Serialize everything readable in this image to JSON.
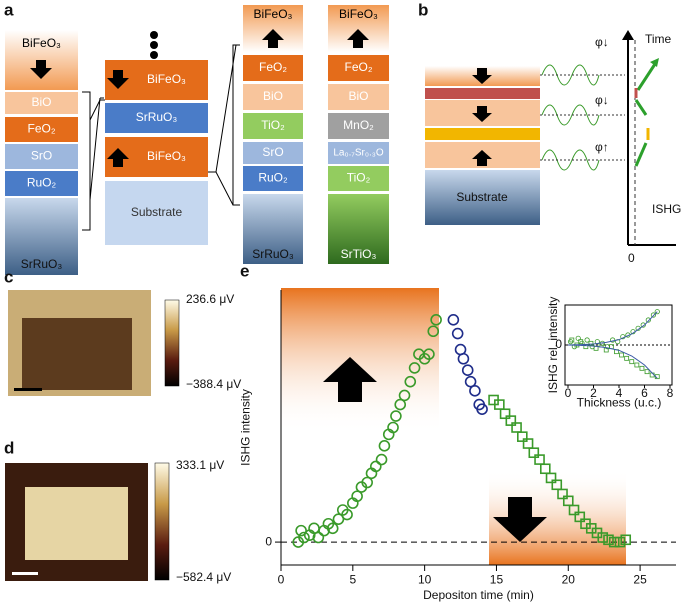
{
  "panels": {
    "a": {
      "label": "a",
      "stacks": [
        [
          "BiFeO₃",
          "BiO",
          "FeO₂",
          "SrO",
          "RuO₂",
          "SrRuO₃"
        ],
        [
          "BiFeO₃",
          "SrRuO₃",
          "BiFeO₃",
          "Substrate"
        ],
        [
          "BiFeO₃",
          "FeO₂",
          "BiO",
          "TiO₂",
          "SrO",
          "RuO₂",
          "SrRuO₃"
        ],
        [
          "BiFeO₃",
          "FeO₂",
          "BiO",
          "MnO₂",
          "La₀.₇Sr₀.₃O",
          "TiO₂",
          "SrTiO₃"
        ]
      ]
    },
    "b": {
      "label": "b",
      "substrate": "Substrate",
      "time": "Time",
      "ishg": "ISHG",
      "zero": "0",
      "phases": [
        "φ↓",
        "φ↓",
        "φ↑"
      ]
    },
    "c": {
      "label": "c",
      "max": "236.6 μV",
      "min": "−388.4 μV"
    },
    "d": {
      "label": "d",
      "max": "333.1 μV",
      "min": "−582.4 μV"
    },
    "e": {
      "label": "e"
    }
  },
  "chart_data": [
    {
      "type": "scatter",
      "xlabel": "Depositon time (min)",
      "ylabel": "ISHG intensity",
      "xlim": [
        0,
        27.5
      ],
      "ylim": [
        -0.1,
        1.1
      ],
      "xticks": [
        0,
        5,
        10,
        15,
        20,
        25
      ],
      "yticks": [
        0
      ],
      "series": [
        {
          "color": "#3a9a2a",
          "marker": "circle",
          "x": [
            1.2,
            1.4,
            1.6,
            2,
            2.3,
            2.6,
            3,
            3.3,
            3.6,
            4,
            4.3,
            4.6,
            5,
            5.3,
            5.6,
            6,
            6.3,
            6.6,
            7,
            7.2,
            7.5,
            7.8,
            8,
            8.3,
            8.6,
            9,
            9.3,
            9.6,
            10,
            10.3,
            10.6,
            10.8
          ],
          "values": [
            0.0,
            0.05,
            0.02,
            0.03,
            0.06,
            0.02,
            0.05,
            0.08,
            0.06,
            0.1,
            0.14,
            0.12,
            0.17,
            0.2,
            0.24,
            0.26,
            0.3,
            0.33,
            0.36,
            0.42,
            0.47,
            0.5,
            0.55,
            0.6,
            0.64,
            0.7,
            0.76,
            0.82,
            0.8,
            0.82,
            0.92,
            0.97
          ]
        },
        {
          "color": "#1f2d8a",
          "marker": "circle",
          "x": [
            12,
            12.3,
            12.5,
            12.7,
            13,
            13.2,
            13.5,
            13.8,
            14
          ],
          "values": [
            0.97,
            0.91,
            0.84,
            0.8,
            0.75,
            0.7,
            0.66,
            0.6,
            0.58
          ]
        },
        {
          "color": "#3a9a2a",
          "marker": "square",
          "x": [
            14.8,
            15.2,
            15.6,
            16,
            16.4,
            16.8,
            17.2,
            17.6,
            18,
            18.4,
            18.8,
            19.2,
            19.6,
            20,
            20.4,
            20.8,
            21.2,
            21.6,
            22,
            22.4,
            22.8,
            23.2,
            23.6,
            24
          ],
          "values": [
            0.62,
            0.6,
            0.56,
            0.53,
            0.5,
            0.46,
            0.43,
            0.39,
            0.36,
            0.32,
            0.28,
            0.25,
            0.21,
            0.18,
            0.14,
            0.11,
            0.08,
            0.06,
            0.04,
            0.02,
            0.01,
            0.0,
            0.0,
            0.01
          ]
        }
      ]
    },
    {
      "type": "scatter",
      "xlabel": "Thickness (u.c.)",
      "ylabel": "ISHG rel. intensity",
      "xlim": [
        0,
        8
      ],
      "ylim": [
        -1.2,
        1.2
      ],
      "xticks": [
        0,
        2,
        4,
        6,
        8
      ],
      "yticks": [
        0
      ],
      "series": [
        {
          "color": "#3a9a2a",
          "marker": "circle",
          "x": [
            0.2,
            0.5,
            0.8,
            1.1,
            1.5,
            1.9,
            2.3,
            2.7,
            3.1,
            3.5,
            3.9,
            4.3,
            4.7,
            5.1,
            5.5,
            5.9,
            6.3,
            6.7,
            7.0
          ],
          "values": [
            0.1,
            -0.05,
            0.2,
            0.05,
            0.15,
            -0.05,
            0.1,
            0.05,
            -0.05,
            0.15,
            0.1,
            0.25,
            0.3,
            0.4,
            0.5,
            0.6,
            0.75,
            0.9,
            1.0
          ]
        },
        {
          "color": "#3a9a2a",
          "marker": "square",
          "x": [
            0.3,
            0.7,
            1.0,
            1.4,
            1.8,
            2.2,
            2.6,
            3.0,
            3.4,
            3.8,
            4.2,
            4.6,
            5.0,
            5.4,
            5.8,
            6.2,
            6.6,
            7.0
          ],
          "values": [
            0.15,
            0.0,
            0.1,
            -0.05,
            0.05,
            -0.1,
            0.0,
            -0.15,
            -0.05,
            -0.2,
            -0.3,
            -0.4,
            -0.5,
            -0.6,
            -0.7,
            -0.8,
            -0.9,
            -0.95
          ]
        },
        {
          "color": "#3b5ba5",
          "marker": "line",
          "x": [
            0,
            1,
            2,
            3,
            4,
            5,
            6,
            7
          ],
          "values": [
            0,
            0.01,
            0.03,
            0.08,
            0.16,
            0.33,
            0.6,
            1.0
          ]
        },
        {
          "color": "#3b5ba5",
          "marker": "line",
          "x": [
            0,
            1,
            2,
            3,
            4,
            5,
            6,
            7
          ],
          "values": [
            0,
            -0.01,
            -0.03,
            -0.08,
            -0.16,
            -0.33,
            -0.6,
            -1.0
          ]
        }
      ]
    }
  ]
}
